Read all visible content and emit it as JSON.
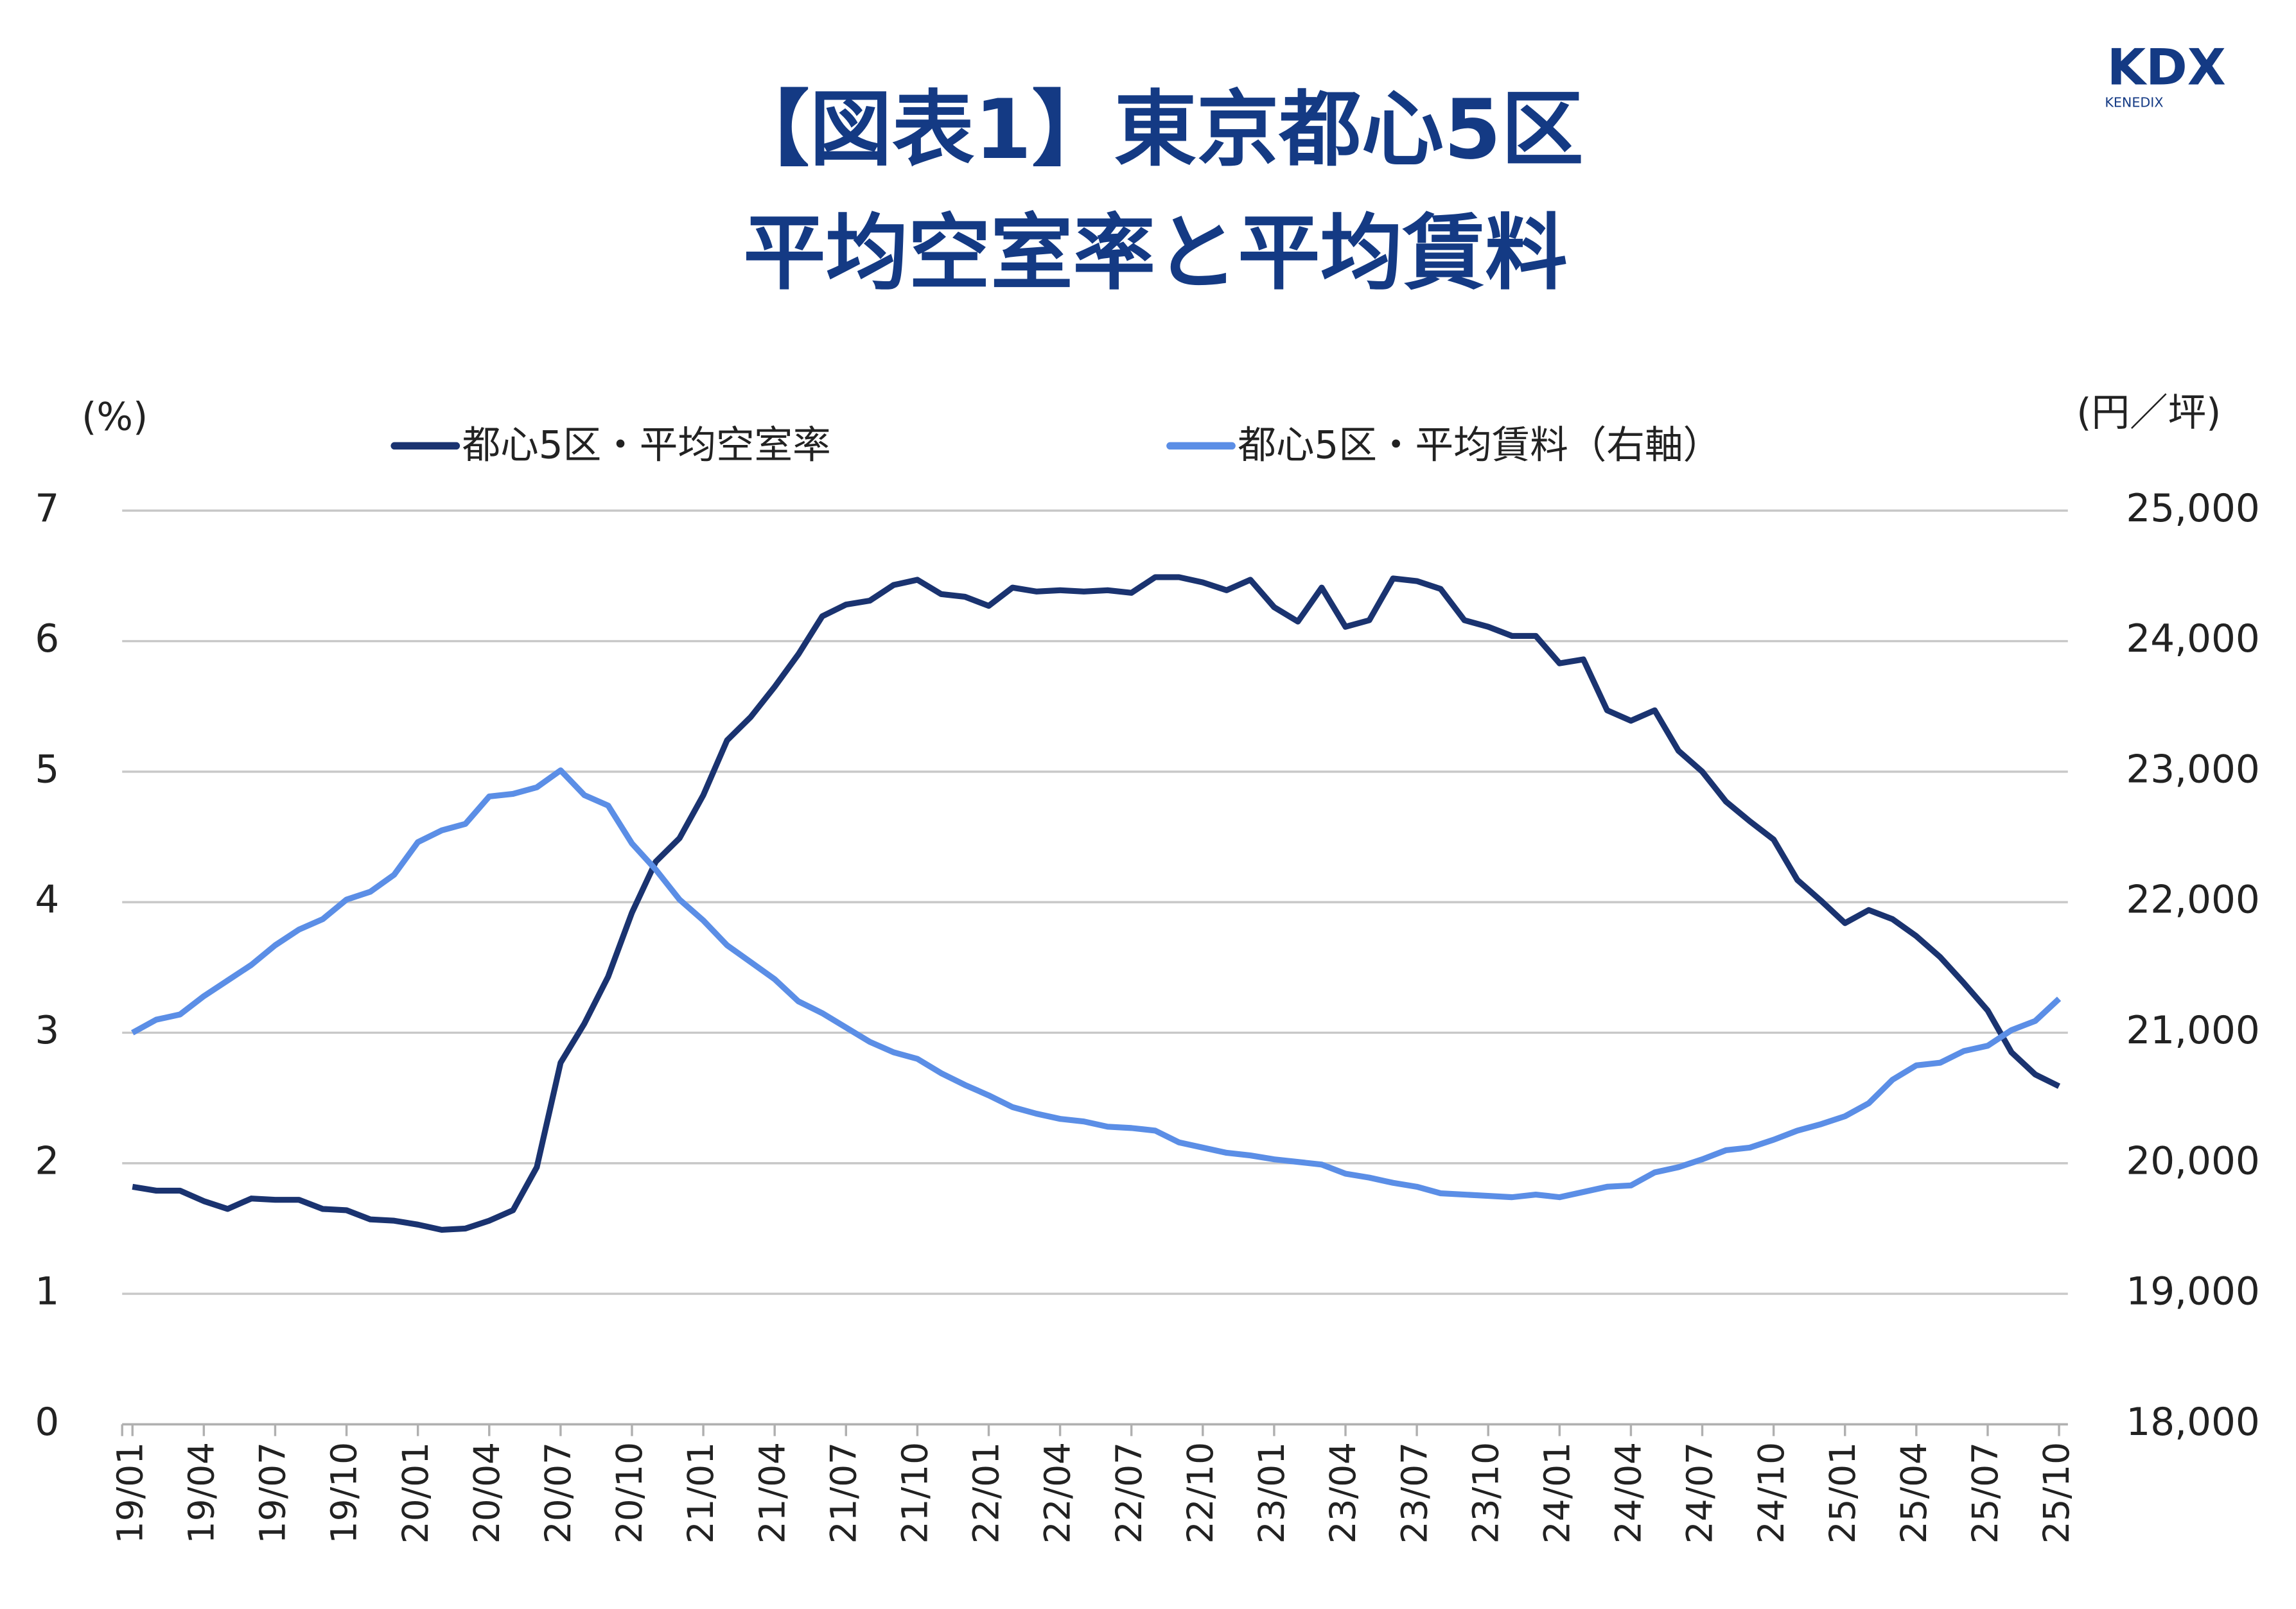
{
  "chart_data": {
    "type": "line",
    "title": "【図表1】東京都心5区",
    "subtitle": "平均空室率と平均賃料",
    "logo": {
      "text": "KDX",
      "subtext": "KENEDIX"
    },
    "y_label": "(%)",
    "y2_label": "(円／坪)",
    "legend": "top",
    "grid": true,
    "categories": [
      "19/01",
      null,
      null,
      "19/04",
      null,
      null,
      "19/07",
      null,
      null,
      "19/10",
      null,
      null,
      "20/01",
      null,
      null,
      "20/04",
      null,
      null,
      "20/07",
      null,
      null,
      "20/10",
      null,
      null,
      "21/01",
      null,
      null,
      "21/04",
      null,
      null,
      "21/07",
      null,
      null,
      "21/10",
      null,
      null,
      "22/01",
      null,
      null,
      "22/04",
      null,
      null,
      "22/07",
      null,
      null,
      "22/10",
      null,
      null,
      "23/01",
      null,
      null,
      "23/04",
      null,
      null,
      "23/07",
      null,
      null,
      "23/10",
      null,
      null,
      "24/01",
      null,
      null,
      "24/04",
      null,
      null,
      "24/07",
      null,
      null,
      "24/10",
      null,
      null,
      "25/01",
      null,
      null,
      "25/04",
      null,
      null,
      "25/07",
      null,
      null,
      "25/10"
    ],
    "series": [
      {
        "name": "都心5区・平均空室率",
        "color": "#1a3370",
        "axis": "y",
        "values": [
          1.82,
          1.79,
          1.79,
          1.71,
          1.65,
          1.73,
          1.72,
          1.72,
          1.65,
          1.64,
          1.57,
          1.56,
          1.53,
          1.49,
          1.5,
          1.56,
          1.64,
          1.97,
          2.77,
          3.07,
          3.43,
          3.92,
          4.31,
          4.49,
          4.82,
          5.24,
          5.42,
          5.65,
          5.9,
          6.19,
          6.28,
          6.31,
          6.43,
          6.47,
          6.36,
          6.34,
          6.27,
          6.41,
          6.38,
          6.39,
          6.38,
          6.39,
          6.37,
          6.49,
          6.49,
          6.45,
          6.39,
          6.47,
          6.26,
          6.15,
          6.41,
          6.11,
          6.16,
          6.48,
          6.46,
          6.4,
          6.16,
          6.11,
          6.04,
          6.04,
          5.83,
          5.86,
          5.47,
          5.39,
          5.47,
          5.16,
          5.0,
          4.77,
          4.62,
          4.48,
          4.17,
          4.01,
          3.84,
          3.94,
          3.87,
          3.74,
          3.58,
          3.38,
          3.17,
          2.85,
          2.68,
          2.59
        ]
      },
      {
        "name": "都心5区・平均賃料（右軸）",
        "color": "#5b8ee6",
        "axis": "y2",
        "values": [
          21000,
          21100,
          21140,
          21280,
          21400,
          21520,
          21670,
          21790,
          21870,
          22020,
          22080,
          22210,
          22460,
          22550,
          22600,
          22810,
          22830,
          22880,
          23010,
          22820,
          22740,
          22450,
          22250,
          22020,
          21860,
          21670,
          21540,
          21410,
          21240,
          21150,
          21040,
          20930,
          20850,
          20800,
          20690,
          20600,
          20520,
          20430,
          20380,
          20340,
          20320,
          20280,
          20270,
          20250,
          20160,
          20120,
          20080,
          20060,
          20030,
          20010,
          19990,
          19920,
          19890,
          19850,
          19820,
          19770,
          19760,
          19750,
          19740,
          19760,
          19740,
          19780,
          19820,
          19830,
          19930,
          19970,
          20030,
          20100,
          20120,
          20180,
          20250,
          20300,
          20360,
          20460,
          20640,
          20750,
          20770,
          20860,
          20900,
          21020,
          21090,
          21260
        ]
      }
    ],
    "ylim": [
      0,
      7
    ],
    "yticks": [
      0,
      1,
      2,
      3,
      4,
      5,
      6,
      7
    ],
    "y2lim": [
      18000,
      25000
    ],
    "y2ticks": [
      {
        "value": 18000,
        "label": "18,000"
      },
      {
        "value": 19000,
        "label": "19,000"
      },
      {
        "value": 20000,
        "label": "20,000"
      },
      {
        "value": 21000,
        "label": "21,000"
      },
      {
        "value": 22000,
        "label": "22,000"
      },
      {
        "value": 23000,
        "label": "23,000"
      },
      {
        "value": 24000,
        "label": "24,000"
      },
      {
        "value": 25000,
        "label": "25,000"
      }
    ]
  }
}
